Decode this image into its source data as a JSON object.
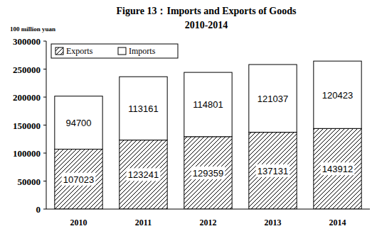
{
  "chart_data": {
    "type": "bar",
    "title": "Figure 13：Imports and Exports of Goods",
    "subtitle": "2010-2014",
    "y_label": "100 million yuan",
    "categories": [
      "2010",
      "2011",
      "2012",
      "2013",
      "2014"
    ],
    "series": [
      {
        "name": "Exports",
        "color": "#000000",
        "values": [
          107023,
          123241,
          129359,
          137131,
          143912
        ]
      },
      {
        "name": "Imports",
        "color": "#ffffff",
        "values": [
          94700,
          113161,
          114801,
          121037,
          120423
        ]
      }
    ],
    "stacked": true,
    "data_labels": true,
    "legend": "top-left",
    "grid": false,
    "ylim": [
      0,
      300000
    ],
    "yticks": [
      0,
      50000,
      100000,
      150000,
      200000,
      250000,
      300000
    ]
  }
}
